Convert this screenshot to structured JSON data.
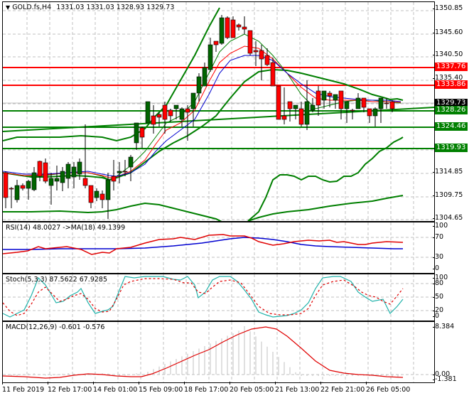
{
  "chart": {
    "symbol_title": "GOLD.fs,H4",
    "ohlc": "1331.03 1331.03 1328.93 1329.73",
    "collapse_icon": "triangle-down-icon"
  },
  "price_axis": {
    "ticks": [
      "1350.85",
      "1345.60",
      "1340.50",
      "1335.40",
      "1314.85",
      "1309.75",
      "1304.65"
    ],
    "labels": {
      "r1": "1337.76",
      "r2": "1333.86",
      "current": "1329.73",
      "s1": "1328.26",
      "s2": "1324.46",
      "s3": "1319.93"
    }
  },
  "colors": {
    "resistance": "#ff0000",
    "support": "#008000",
    "current": "#000000",
    "bull_candle": "#006400",
    "bear_candle": "#ff0000",
    "bollinger": "#007f00",
    "rsi_line": "#e00000",
    "rsi_ma": "#0000d0",
    "stoch_main": "#20b2aa",
    "stoch_signal": "#e00000",
    "macd_hist": "#c0c0c0",
    "macd_signal": "#e00000"
  },
  "rsi": {
    "title": "RSI(14) 48.0027  ->MA(18) 49.1399",
    "ticks": [
      "100",
      "70",
      "30",
      "0"
    ]
  },
  "stoch": {
    "title": "Stoch(5,3,3) 87.5622 67.9285",
    "ticks": [
      "100",
      "80",
      "50",
      "20",
      "0"
    ]
  },
  "macd": {
    "title": "MACD(12,26,9) -0.601 -0.576",
    "ticks": [
      "8.384",
      "0.00",
      "-1.381"
    ]
  },
  "time_axis": {
    "labels": [
      "11 Feb 2019",
      "12 Feb 17:00",
      "14 Feb 01:00",
      "15 Feb 09:00",
      "18 Feb 17:00",
      "20 Feb 05:00",
      "21 Feb 13:00",
      "22 Feb 21:00",
      "26 Feb 05:00"
    ]
  },
  "chart_data": {
    "type": "candlestick",
    "title": "GOLD.fs,H4",
    "ylim": [
      1304.65,
      1350.85
    ],
    "horizontal_levels": [
      {
        "value": 1337.76,
        "color": "red"
      },
      {
        "value": 1333.86,
        "color": "red"
      },
      {
        "value": 1328.26,
        "color": "green"
      },
      {
        "value": 1324.46,
        "color": "green"
      },
      {
        "value": 1319.93,
        "color": "green"
      }
    ],
    "last_price": 1329.73,
    "indicators": {
      "rsi_14": 48.0027,
      "rsi_ma_18": 49.1399,
      "stoch_k": 87.5622,
      "stoch_d": 67.9285,
      "macd": -0.601,
      "macd_signal": -0.576
    },
    "x_labels": [
      "11 Feb 2019",
      "12 Feb 17:00",
      "14 Feb 01:00",
      "15 Feb 09:00",
      "18 Feb 17:00",
      "20 Feb 05:00",
      "21 Feb 13:00",
      "22 Feb 21:00",
      "26 Feb 05:00"
    ]
  }
}
